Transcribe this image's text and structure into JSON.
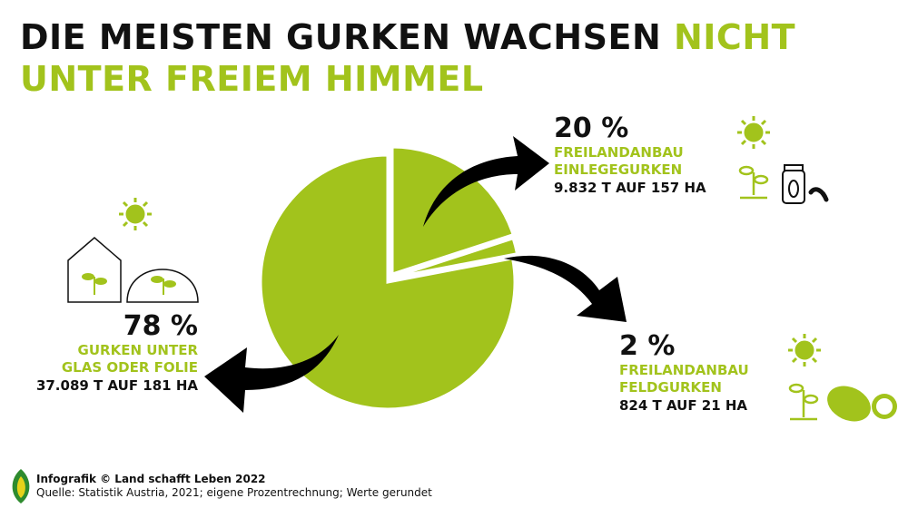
{
  "title": {
    "part1": "DIE MEISTEN GURKEN WACHSEN ",
    "part2": "NICHT",
    "line2": "UNTER FREIEM HIMMEL"
  },
  "chart_data": {
    "type": "pie",
    "title": "DIE MEISTEN GURKEN WACHSEN NICHT UNTER FREIEM HIMMEL",
    "slices": [
      {
        "label": "FREILANDANBAU EINLEGEGURKEN",
        "pct_label": "20 %",
        "value": 20,
        "amount": "9.832 T AUF 157 HA"
      },
      {
        "label": "FREILANDANBAU FELDGURKEN",
        "pct_label": "2 %",
        "value": 2,
        "amount": "824 T AUF 21 HA"
      },
      {
        "label": "GURKEN UNTER GLAS ODER FOLIE",
        "pct_label": "78 %",
        "value": 78,
        "amount": "37.089 T AUF 181 HA"
      }
    ],
    "color": "#a2c31c"
  },
  "labels": {
    "s0": {
      "pct": "20 %",
      "l1": "FREILANDANBAU",
      "l2": "EINLEGEGURKEN",
      "amt": "9.832 T AUF 157 HA"
    },
    "s1": {
      "pct": "2 %",
      "l1": "FREILANDANBAU",
      "l2": "FELDGURKEN",
      "amt": "824 T AUF 21 HA"
    },
    "s2": {
      "pct": "78 %",
      "l1": "GURKEN UNTER",
      "l2": "GLAS ODER FOLIE",
      "amt": "37.089 T AUF 181 HA"
    }
  },
  "footer": {
    "line1": "Infografik © Land schafft Leben 2022",
    "line2": "Quelle: Statistik Austria, 2021; eigene Prozentrechnung; Werte gerundet",
    "logo_text": "Land schafft Leben"
  }
}
